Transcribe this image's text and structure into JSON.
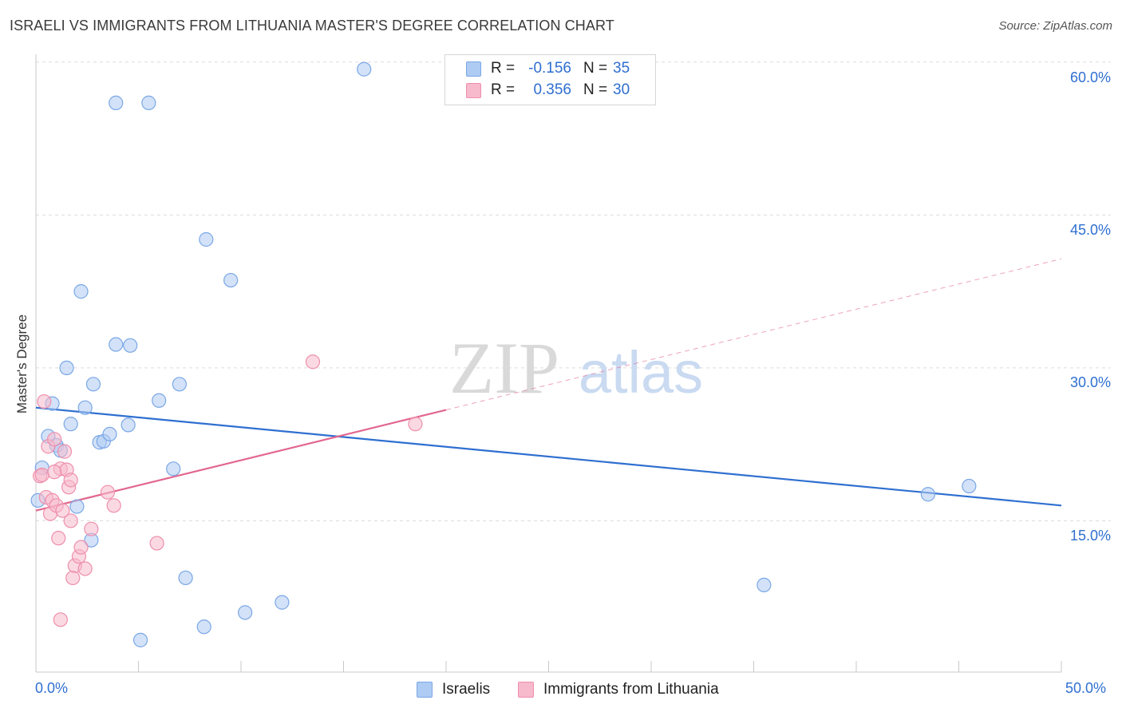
{
  "title": "ISRAELI VS IMMIGRANTS FROM LITHUANIA MASTER'S DEGREE CORRELATION CHART",
  "source": "Source: ZipAtlas.com",
  "watermark": {
    "zip": "ZIP",
    "atlas": "atlas"
  },
  "legend_top": {
    "rows": [
      {
        "r_label": "R =",
        "r_value": "-0.156",
        "n_label": "N =",
        "n_value": "35"
      },
      {
        "r_label": "R =",
        "r_value": "0.356",
        "n_label": "N =",
        "n_value": "30"
      }
    ]
  },
  "legend_bottom": {
    "items": [
      "Israelis",
      "Immigrants from Lithuania"
    ]
  },
  "axes": {
    "ylabel": "Master's Degree",
    "y_ticks": [
      "60.0%",
      "45.0%",
      "30.0%",
      "15.0%"
    ],
    "x_ticks": [
      "0.0%",
      "50.0%"
    ]
  },
  "colors": {
    "blue_fill": "#aecbf3",
    "blue_stroke": "#7aa7e6",
    "blue_line": "#2f6fd0",
    "pink_fill": "#f7b9cc",
    "pink_stroke": "#ee8fac",
    "pink_line": "#e2678f",
    "grid": "#dcdcdc",
    "tick_text": "#2f6fd0"
  },
  "chart_data": {
    "type": "scatter",
    "xlim": [
      0,
      50
    ],
    "ylim": [
      0,
      61
    ],
    "x_unit": "%",
    "y_unit": "%",
    "grid_y": [
      15,
      30,
      45,
      60
    ],
    "series": [
      {
        "name": "Israelis",
        "r": -0.156,
        "n": 35,
        "trend": {
          "x": [
            0,
            50
          ],
          "y": [
            26.1,
            16.5
          ],
          "dashed_from": null
        },
        "points": [
          [
            0.1,
            17.0
          ],
          [
            0.3,
            20.2
          ],
          [
            0.6,
            23.3
          ],
          [
            0.8,
            26.5
          ],
          [
            1.0,
            22.4
          ],
          [
            1.2,
            21.9
          ],
          [
            1.5,
            30.0
          ],
          [
            1.7,
            24.5
          ],
          [
            2.0,
            16.4
          ],
          [
            2.2,
            37.5
          ],
          [
            2.4,
            26.1
          ],
          [
            2.7,
            13.1
          ],
          [
            2.8,
            28.4
          ],
          [
            3.1,
            22.7
          ],
          [
            3.3,
            22.8
          ],
          [
            3.6,
            23.5
          ],
          [
            3.9,
            56.0
          ],
          [
            3.9,
            32.3
          ],
          [
            4.5,
            24.4
          ],
          [
            4.6,
            32.2
          ],
          [
            5.1,
            3.3
          ],
          [
            5.5,
            56.0
          ],
          [
            6.0,
            26.8
          ],
          [
            6.7,
            20.1
          ],
          [
            7.0,
            28.4
          ],
          [
            7.3,
            9.4
          ],
          [
            8.2,
            4.6
          ],
          [
            8.3,
            42.6
          ],
          [
            9.5,
            38.6
          ],
          [
            10.2,
            6.0
          ],
          [
            12.0,
            7.0
          ],
          [
            16.0,
            59.3
          ],
          [
            35.5,
            8.7
          ],
          [
            43.5,
            17.6
          ],
          [
            45.5,
            18.4
          ]
        ]
      },
      {
        "name": "Immigrants from Lithuania",
        "r": 0.356,
        "n": 30,
        "trend": {
          "x": [
            0,
            50
          ],
          "y": [
            16.0,
            40.7
          ],
          "dashed_from": 20
        },
        "points": [
          [
            0.2,
            19.4
          ],
          [
            0.3,
            19.5
          ],
          [
            0.4,
            26.7
          ],
          [
            0.5,
            17.3
          ],
          [
            0.6,
            22.3
          ],
          [
            0.7,
            15.7
          ],
          [
            0.8,
            17.0
          ],
          [
            0.9,
            23.0
          ],
          [
            1.0,
            16.5
          ],
          [
            1.1,
            13.3
          ],
          [
            1.2,
            20.1
          ],
          [
            1.4,
            21.8
          ],
          [
            1.5,
            20.0
          ],
          [
            1.6,
            18.3
          ],
          [
            1.7,
            19.0
          ],
          [
            1.7,
            15.0
          ],
          [
            1.8,
            9.4
          ],
          [
            1.9,
            10.6
          ],
          [
            2.1,
            11.5
          ],
          [
            2.2,
            12.4
          ],
          [
            2.4,
            10.3
          ],
          [
            2.7,
            14.2
          ],
          [
            1.2,
            5.3
          ],
          [
            3.5,
            17.8
          ],
          [
            3.8,
            16.5
          ],
          [
            5.9,
            12.8
          ],
          [
            13.5,
            30.6
          ],
          [
            18.5,
            24.5
          ],
          [
            0.9,
            19.8
          ],
          [
            1.3,
            16.0
          ]
        ]
      }
    ]
  }
}
